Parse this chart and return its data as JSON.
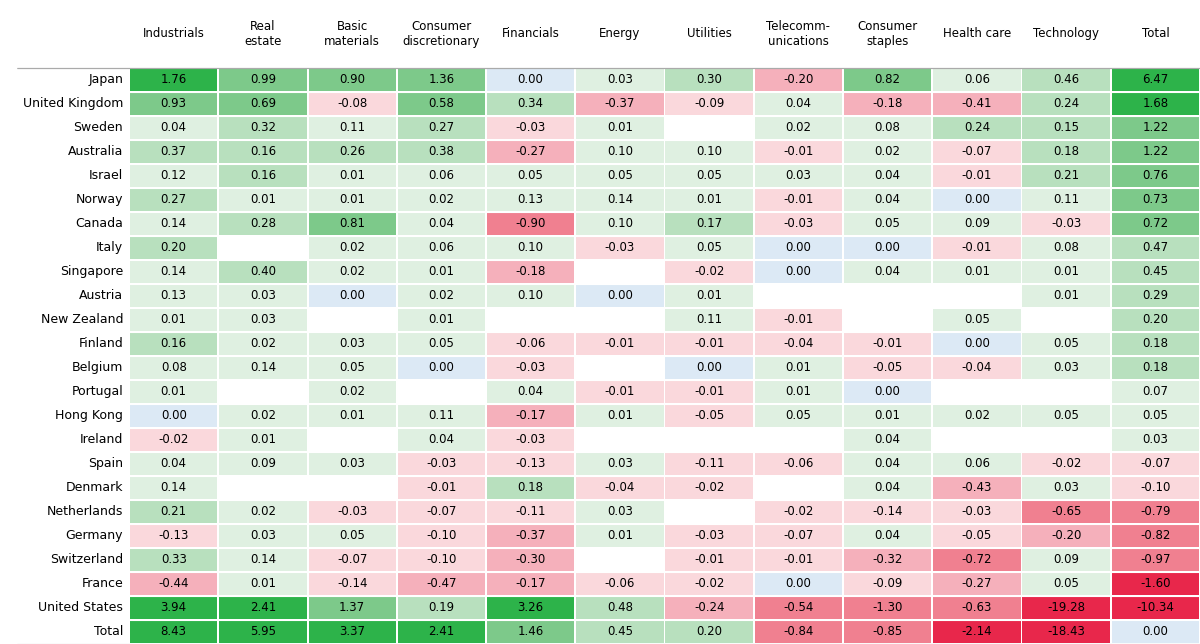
{
  "columns": [
    "Industrials",
    "Real\nestate",
    "Basic\nmaterials",
    "Consumer\ndiscretionary",
    "Financials",
    "Energy",
    "Utilities",
    "Telecomm-\nunications",
    "Consumer\nstaples",
    "Health care",
    "Technology",
    "Total"
  ],
  "rows": [
    "Japan",
    "United Kingdom",
    "Sweden",
    "Australia",
    "Israel",
    "Norway",
    "Canada",
    "Italy",
    "Singapore",
    "Austria",
    "New Zealand",
    "Finland",
    "Belgium",
    "Portugal",
    "Hong Kong",
    "Ireland",
    "Spain",
    "Denmark",
    "Netherlands",
    "Germany",
    "Switzerland",
    "France",
    "United States",
    "Total"
  ],
  "data": [
    [
      1.76,
      0.99,
      0.9,
      1.36,
      0.0,
      0.03,
      0.3,
      -0.2,
      0.82,
      0.06,
      0.46,
      6.47
    ],
    [
      0.93,
      0.69,
      -0.08,
      0.58,
      0.34,
      -0.37,
      -0.09,
      0.04,
      -0.18,
      -0.41,
      0.24,
      1.68
    ],
    [
      0.04,
      0.32,
      0.11,
      0.27,
      -0.03,
      0.01,
      null,
      0.02,
      0.08,
      0.24,
      0.15,
      1.22
    ],
    [
      0.37,
      0.16,
      0.26,
      0.38,
      -0.27,
      0.1,
      0.1,
      -0.01,
      0.02,
      -0.07,
      0.18,
      1.22
    ],
    [
      0.12,
      0.16,
      0.01,
      0.06,
      0.05,
      0.05,
      0.05,
      0.03,
      0.04,
      -0.01,
      0.21,
      0.76
    ],
    [
      0.27,
      0.01,
      0.01,
      0.02,
      0.13,
      0.14,
      0.01,
      -0.01,
      0.04,
      0.0,
      0.11,
      0.73
    ],
    [
      0.14,
      0.28,
      0.81,
      0.04,
      -0.9,
      0.1,
      0.17,
      -0.03,
      0.05,
      0.09,
      -0.03,
      0.72
    ],
    [
      0.2,
      null,
      0.02,
      0.06,
      0.1,
      -0.03,
      0.05,
      0.0,
      0.0,
      -0.01,
      0.08,
      0.47
    ],
    [
      0.14,
      0.4,
      0.02,
      0.01,
      -0.18,
      null,
      -0.02,
      0.0,
      0.04,
      0.01,
      0.01,
      0.45
    ],
    [
      0.13,
      0.03,
      0.0,
      0.02,
      0.1,
      0.0,
      0.01,
      null,
      null,
      null,
      0.01,
      0.29
    ],
    [
      0.01,
      0.03,
      null,
      0.01,
      null,
      null,
      0.11,
      -0.01,
      null,
      0.05,
      null,
      0.2
    ],
    [
      0.16,
      0.02,
      0.03,
      0.05,
      -0.06,
      -0.01,
      -0.01,
      -0.04,
      -0.01,
      0.0,
      0.05,
      0.18
    ],
    [
      0.08,
      0.14,
      0.05,
      0.0,
      -0.03,
      null,
      0.0,
      0.01,
      -0.05,
      -0.04,
      0.03,
      0.18
    ],
    [
      0.01,
      null,
      0.02,
      null,
      0.04,
      -0.01,
      -0.01,
      0.01,
      0.0,
      null,
      null,
      0.07
    ],
    [
      0.0,
      0.02,
      0.01,
      0.11,
      -0.17,
      0.01,
      -0.05,
      0.05,
      0.01,
      0.02,
      0.05,
      0.05
    ],
    [
      -0.02,
      0.01,
      null,
      0.04,
      -0.03,
      null,
      null,
      null,
      0.04,
      null,
      null,
      0.03
    ],
    [
      0.04,
      0.09,
      0.03,
      -0.03,
      -0.13,
      0.03,
      -0.11,
      -0.06,
      0.04,
      0.06,
      -0.02,
      -0.07
    ],
    [
      0.14,
      null,
      null,
      -0.01,
      0.18,
      -0.04,
      -0.02,
      null,
      0.04,
      -0.43,
      0.03,
      -0.1
    ],
    [
      0.21,
      0.02,
      -0.03,
      -0.07,
      -0.11,
      0.03,
      null,
      -0.02,
      -0.14,
      -0.03,
      -0.65,
      -0.79
    ],
    [
      -0.13,
      0.03,
      0.05,
      -0.1,
      -0.37,
      0.01,
      -0.03,
      -0.07,
      0.04,
      -0.05,
      -0.2,
      -0.82
    ],
    [
      0.33,
      0.14,
      -0.07,
      -0.1,
      -0.3,
      null,
      -0.01,
      -0.01,
      -0.32,
      -0.72,
      0.09,
      -0.97
    ],
    [
      -0.44,
      0.01,
      -0.14,
      -0.47,
      -0.17,
      -0.06,
      -0.02,
      0.0,
      -0.09,
      -0.27,
      0.05,
      -1.6
    ],
    [
      3.94,
      2.41,
      1.37,
      0.19,
      3.26,
      0.48,
      -0.24,
      -0.54,
      -1.3,
      -0.63,
      -19.28,
      -10.34
    ],
    [
      8.43,
      5.95,
      3.37,
      2.41,
      1.46,
      0.45,
      0.2,
      -0.84,
      -0.85,
      -2.14,
      -18.43,
      0.0
    ]
  ],
  "bg_color": "#ffffff",
  "pos_strong": "#2db34a",
  "pos_medium": "#7dc98a",
  "pos_light": "#b8e0be",
  "pos_vlight": "#dff0e1",
  "neg_strong": "#e8274b",
  "neg_medium": "#f08090",
  "neg_light": "#f5b0bb",
  "neg_vlight": "#fad8dc",
  "neutral": "#dce9f5",
  "row_label_fontsize": 9,
  "col_label_fontsize": 8.5,
  "cell_fontsize": 8.5
}
